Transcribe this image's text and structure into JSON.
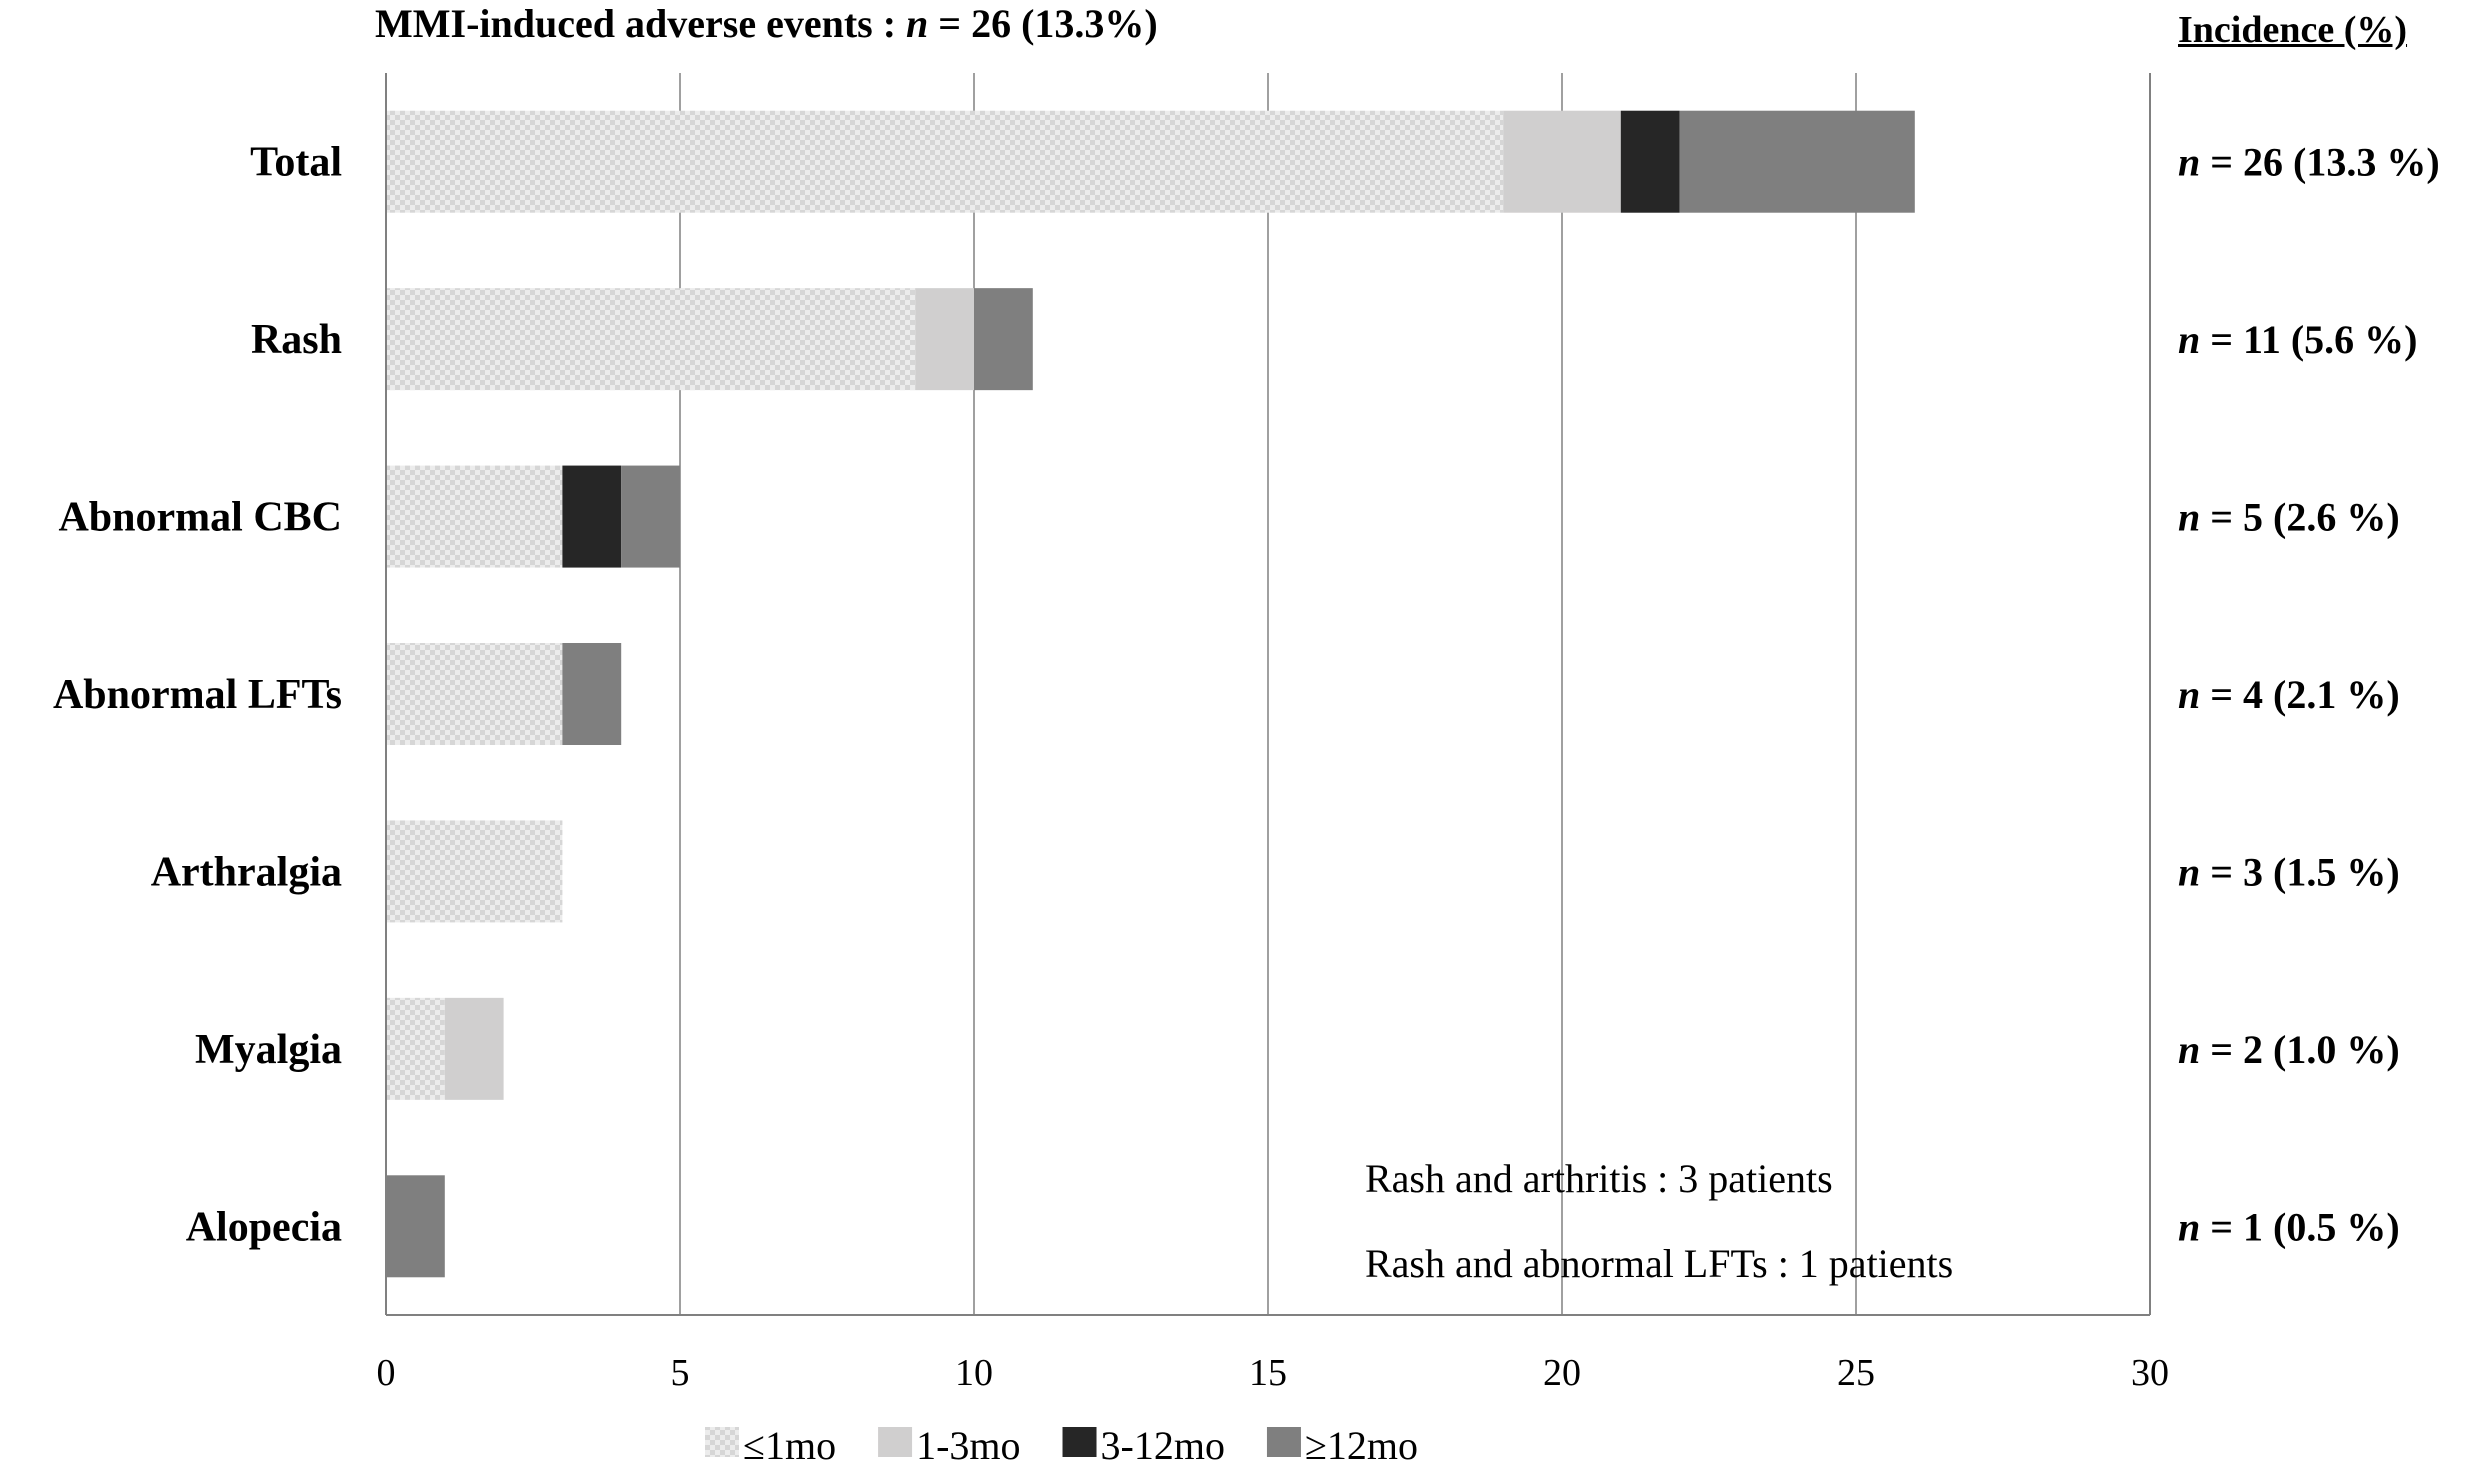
{
  "title_prefix": "MMI-induced adverse events : ",
  "title_n": "n",
  "title_suffix": " = 26 (13.3%)",
  "incidence_header": "Incidence (%)",
  "notes": [
    "Rash and arthritis : 3 patients",
    "Rash and abnormal LFTs : 1 patients"
  ],
  "colors": {
    "le1mo": "#e6e6e6",
    "m1_3": "#d0cfcf",
    "m3_12": "#262626",
    "ge12": "#7f7f7f",
    "grid": "#a0a0a0",
    "axis": "#808080"
  },
  "chart_data": {
    "type": "bar",
    "orientation": "horizontal",
    "stacked": true,
    "title": "MMI-induced adverse events : n = 26 (13.3%)",
    "categories": [
      "Total",
      "Rash",
      "Abnormal CBC",
      "Abnormal LFTs",
      "Arthralgia",
      "Myalgia",
      "Alopecia"
    ],
    "series": [
      {
        "name": "≤1mo",
        "key": "le1mo",
        "pattern": "checker",
        "values": [
          19,
          9,
          3,
          3,
          3,
          1,
          0
        ]
      },
      {
        "name": "1-3mo",
        "key": "m1_3",
        "pattern": "solid",
        "values": [
          2,
          1,
          0,
          0,
          0,
          1,
          0
        ]
      },
      {
        "name": "3-12mo",
        "key": "m3_12",
        "pattern": "solid",
        "values": [
          1,
          0,
          1,
          0,
          0,
          0,
          0
        ]
      },
      {
        "name": "≥12mo",
        "key": "ge12",
        "pattern": "solid",
        "values": [
          4,
          1,
          1,
          1,
          0,
          0,
          1
        ]
      }
    ],
    "incidence": [
      {
        "n": 26,
        "text": " = 26 (13.3 %)"
      },
      {
        "n": 11,
        "text": " = 11 (5.6 %)"
      },
      {
        "n": 5,
        "text": " = 5 (2.6 %)"
      },
      {
        "n": 4,
        "text": " = 4 (2.1 %)"
      },
      {
        "n": 3,
        "text": " = 3 (1.5 %)"
      },
      {
        "n": 2,
        "text": " = 2 (1.0 %)"
      },
      {
        "n": 1,
        "text": " = 1 (0.5 %)"
      }
    ],
    "xlim": [
      0,
      30
    ],
    "xticks": [
      0,
      5,
      10,
      15,
      20,
      25,
      30
    ],
    "xlabel": "",
    "ylabel": "",
    "grid": true,
    "legend_position": "bottom"
  }
}
